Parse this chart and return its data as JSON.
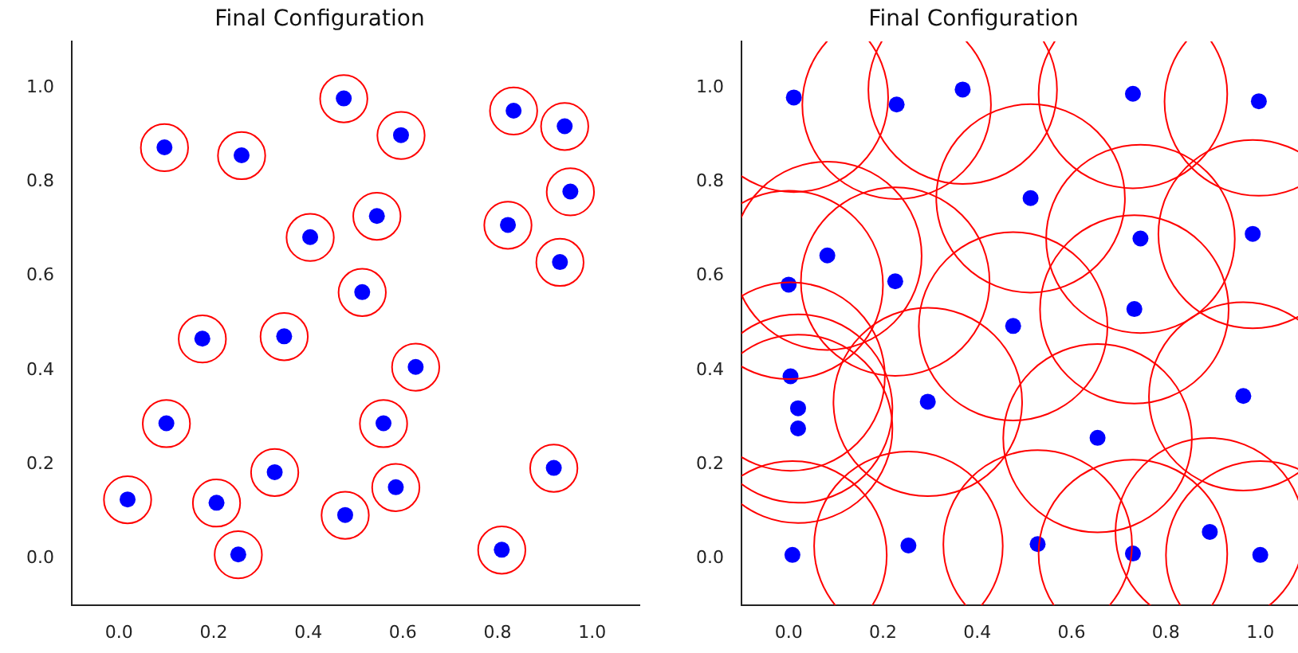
{
  "chart_data": [
    {
      "type": "scatter",
      "title": "Final Configuration",
      "x": [
        0.096,
        0.259,
        0.475,
        0.596,
        0.834,
        0.942,
        0.954,
        0.545,
        0.404,
        0.822,
        0.932,
        0.514,
        0.176,
        0.349,
        0.627,
        0.1,
        0.559,
        0.329,
        0.919,
        0.018,
        0.206,
        0.585,
        0.478,
        0.252,
        0.809
      ],
      "series": [
        {
          "type": "scatter",
          "color": "#0000ff",
          "values": [
            0.874,
            0.857,
            0.978,
            0.9,
            0.952,
            0.919,
            0.78,
            0.728,
            0.683,
            0.709,
            0.63,
            0.566,
            0.467,
            0.472,
            0.407,
            0.287,
            0.287,
            0.183,
            0.192,
            0.125,
            0.118,
            0.151,
            0.092,
            0.008,
            0.018
          ]
        }
      ],
      "xlim": [
        -0.1,
        1.1
      ],
      "ylim": [
        -0.1,
        1.1
      ],
      "xticks": [
        {
          "value": 0,
          "label": "0.0"
        },
        {
          "value": 0.2,
          "label": "0.2"
        },
        {
          "value": 0.4,
          "label": "0.4"
        },
        {
          "value": 0.6,
          "label": "0.6"
        },
        {
          "value": 0.8,
          "label": "0.8"
        },
        {
          "value": 1,
          "label": "1.0"
        }
      ],
      "yticks": [
        {
          "value": 0,
          "label": "0.0"
        },
        {
          "value": 0.2,
          "label": "0.2"
        },
        {
          "value": 0.4,
          "label": "0.4"
        },
        {
          "value": 0.6,
          "label": "0.6"
        },
        {
          "value": 0.8,
          "label": "0.8"
        },
        {
          "value": 1,
          "label": "1.0"
        }
      ],
      "marker": "circle"
    },
    {
      "type": "scatter",
      "title": "Final Configuration",
      "x": [
        0.011,
        0.229,
        0.369,
        0.73,
        0.997,
        0.513,
        0.746,
        0.984,
        0.082,
        0.0,
        0.226,
        0.733,
        0.476,
        0.004,
        0.02,
        0.02,
        0.295,
        0.655,
        0.964,
        0.893,
        0.008,
        0.254,
        0.528,
        0.73,
        1.0
      ],
      "series": [
        {
          "type": "scatter",
          "color": "#0000ff",
          "values": [
            0.98,
            0.965,
            0.997,
            0.988,
            0.972,
            0.766,
            0.68,
            0.69,
            0.644,
            0.582,
            0.589,
            0.53,
            0.494,
            0.387,
            0.319,
            0.276,
            0.333,
            0.256,
            0.345,
            0.056,
            0.007,
            0.027,
            0.03,
            0.01,
            0.007
          ]
        }
      ],
      "xlim": [
        -0.1,
        1.08
      ],
      "ylim": [
        -0.1,
        1.1
      ],
      "xticks": [
        {
          "value": 0,
          "label": "0.0"
        },
        {
          "value": 0.2,
          "label": "0.2"
        },
        {
          "value": 0.4,
          "label": "0.4"
        },
        {
          "value": 0.6,
          "label": "0.6"
        },
        {
          "value": 0.8,
          "label": "0.8"
        },
        {
          "value": 1,
          "label": "1.0"
        }
      ],
      "yticks": [
        {
          "value": 0,
          "label": "0.0"
        },
        {
          "value": 0.2,
          "label": "0.2"
        },
        {
          "value": 0.4,
          "label": "0.4"
        },
        {
          "value": 0.6,
          "label": "0.6"
        },
        {
          "value": 0.8,
          "label": "0.8"
        },
        {
          "value": 1,
          "label": "1.0"
        }
      ],
      "marker": "circle"
    }
  ]
}
